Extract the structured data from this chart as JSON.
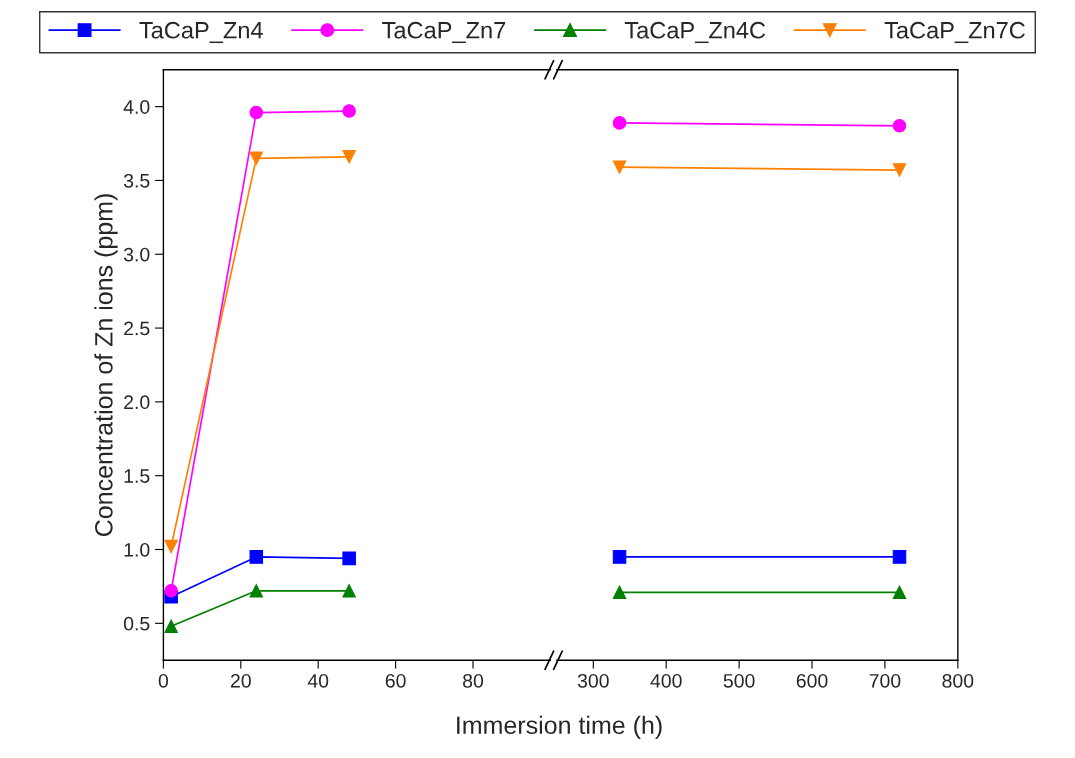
{
  "chart_data": [
    {
      "type": "line",
      "xlabel": "Immersion time (h)",
      "ylabel": "Concentration of Zn ions (ppm)",
      "xlim": [
        0,
        100
      ],
      "xticks": [
        0,
        20,
        40,
        60,
        80
      ],
      "ylim": [
        0.25,
        4.25
      ],
      "yticks": [
        0.5,
        {
          "value": 1,
          "label": "1.0"
        },
        1.5,
        {
          "value": 2,
          "label": "2.0"
        },
        2.5,
        {
          "value": 3,
          "label": "3.0"
        },
        3.5,
        {
          "value": 4,
          "label": "4.0"
        }
      ],
      "legend": "top",
      "grid": false,
      "x": [
        2,
        24,
        48
      ],
      "series": [
        {
          "name": "TaCaP_Zn4",
          "color": "#0000ff",
          "marker": "square",
          "values": [
            0.68,
            0.95,
            0.94
          ]
        },
        {
          "name": "TaCaP_Zn7",
          "color": "#ff00ff",
          "marker": "circle",
          "values": [
            0.72,
            3.96,
            3.97
          ]
        },
        {
          "name": "TaCaP_Zn4C",
          "color": "#008000",
          "marker": "triangle",
          "values": [
            0.48,
            0.72,
            0.72
          ]
        },
        {
          "name": "TaCaP_Zn7C",
          "color": "#ff8000",
          "marker": "triangle_down",
          "values": [
            1.02,
            3.65,
            3.66
          ]
        }
      ]
    },
    {
      "type": "line",
      "xlim": [
        250,
        800
      ],
      "xticks": [
        300,
        400,
        500,
        600,
        700,
        800
      ],
      "ylim": [
        0.25,
        4.25
      ],
      "yticks": [
        0.5,
        1.0,
        1.5,
        2.0,
        2.5,
        3.0,
        3.5,
        4.0
      ],
      "tick_labels": "x",
      "grid": false,
      "x": [
        336,
        720
      ],
      "series": [
        {
          "color": "#0000ff",
          "marker": "square",
          "values": [
            0.95,
            0.95
          ]
        },
        {
          "color": "#ff00ff",
          "marker": "circle",
          "values": [
            3.89,
            3.87
          ]
        },
        {
          "color": "#008000",
          "marker": "triangle",
          "values": [
            0.71,
            0.71
          ]
        },
        {
          "color": "#ff8000",
          "marker": "triangle_down",
          "values": [
            3.59,
            3.57
          ]
        }
      ]
    }
  ]
}
